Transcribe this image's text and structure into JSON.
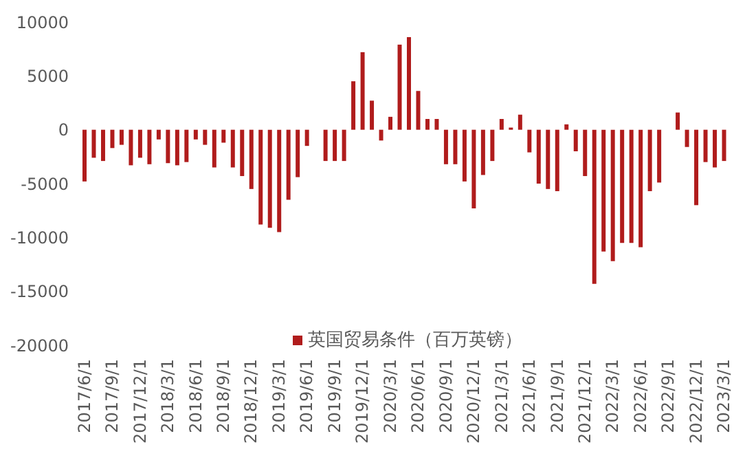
{
  "chart_data": {
    "type": "bar",
    "categories": [
      "2017/6/1",
      null,
      null,
      "2017/9/1",
      null,
      null,
      "2017/12/1",
      null,
      null,
      "2018/3/1",
      null,
      null,
      "2018/6/1",
      null,
      null,
      "2018/9/1",
      null,
      null,
      "2018/12/1",
      null,
      null,
      "2019/3/1",
      null,
      null,
      "2019/6/1",
      null,
      null,
      "2019/9/1",
      null,
      null,
      "2019/12/1",
      null,
      null,
      "2020/3/1",
      null,
      null,
      "2020/6/1",
      null,
      null,
      "2020/9/1",
      null,
      null,
      "2020/12/1",
      null,
      null,
      "2021/3/1",
      null,
      null,
      "2021/6/1",
      null,
      null,
      "2021/9/1",
      null,
      null,
      "2021/12/1",
      null,
      null,
      "2022/3/1",
      null,
      null,
      "2022/6/1",
      null,
      null,
      "2022/9/1",
      null,
      null,
      "2022/12/1",
      null,
      null,
      "2023/3/1"
    ],
    "series": [
      {
        "name": "英国贸易条件（百万英镑）",
        "color": "#b01c1c",
        "values": [
          -4800,
          -2600,
          -2900,
          -1700,
          -1400,
          -3300,
          -2600,
          -3200,
          -900,
          -3100,
          -3300,
          -3000,
          -900,
          -1400,
          -3500,
          -1200,
          -3500,
          -4300,
          -5500,
          -8800,
          -9100,
          -9500,
          -6500,
          -4400,
          -1500,
          0,
          -2900,
          -2900,
          -2900,
          4500,
          7200,
          2700,
          -1000,
          1200,
          7900,
          8600,
          3600,
          1000,
          1000,
          -3200,
          -3200,
          -4800,
          -7300,
          -4200,
          -2900,
          1000,
          200,
          1400,
          -2100,
          -5000,
          -5500,
          -5700,
          500,
          -2000,
          -4300,
          -14300,
          -11300,
          -12200,
          -10500,
          -10500,
          -10900,
          -5700,
          -4900,
          0,
          1600,
          -1600,
          -7000,
          -3000,
          -3500,
          -2900
        ]
      }
    ],
    "ylim": [
      -20000,
      10000
    ],
    "yticks": [
      -20000,
      -15000,
      -10000,
      -5000,
      0,
      5000,
      10000
    ],
    "legend": "bottom"
  }
}
